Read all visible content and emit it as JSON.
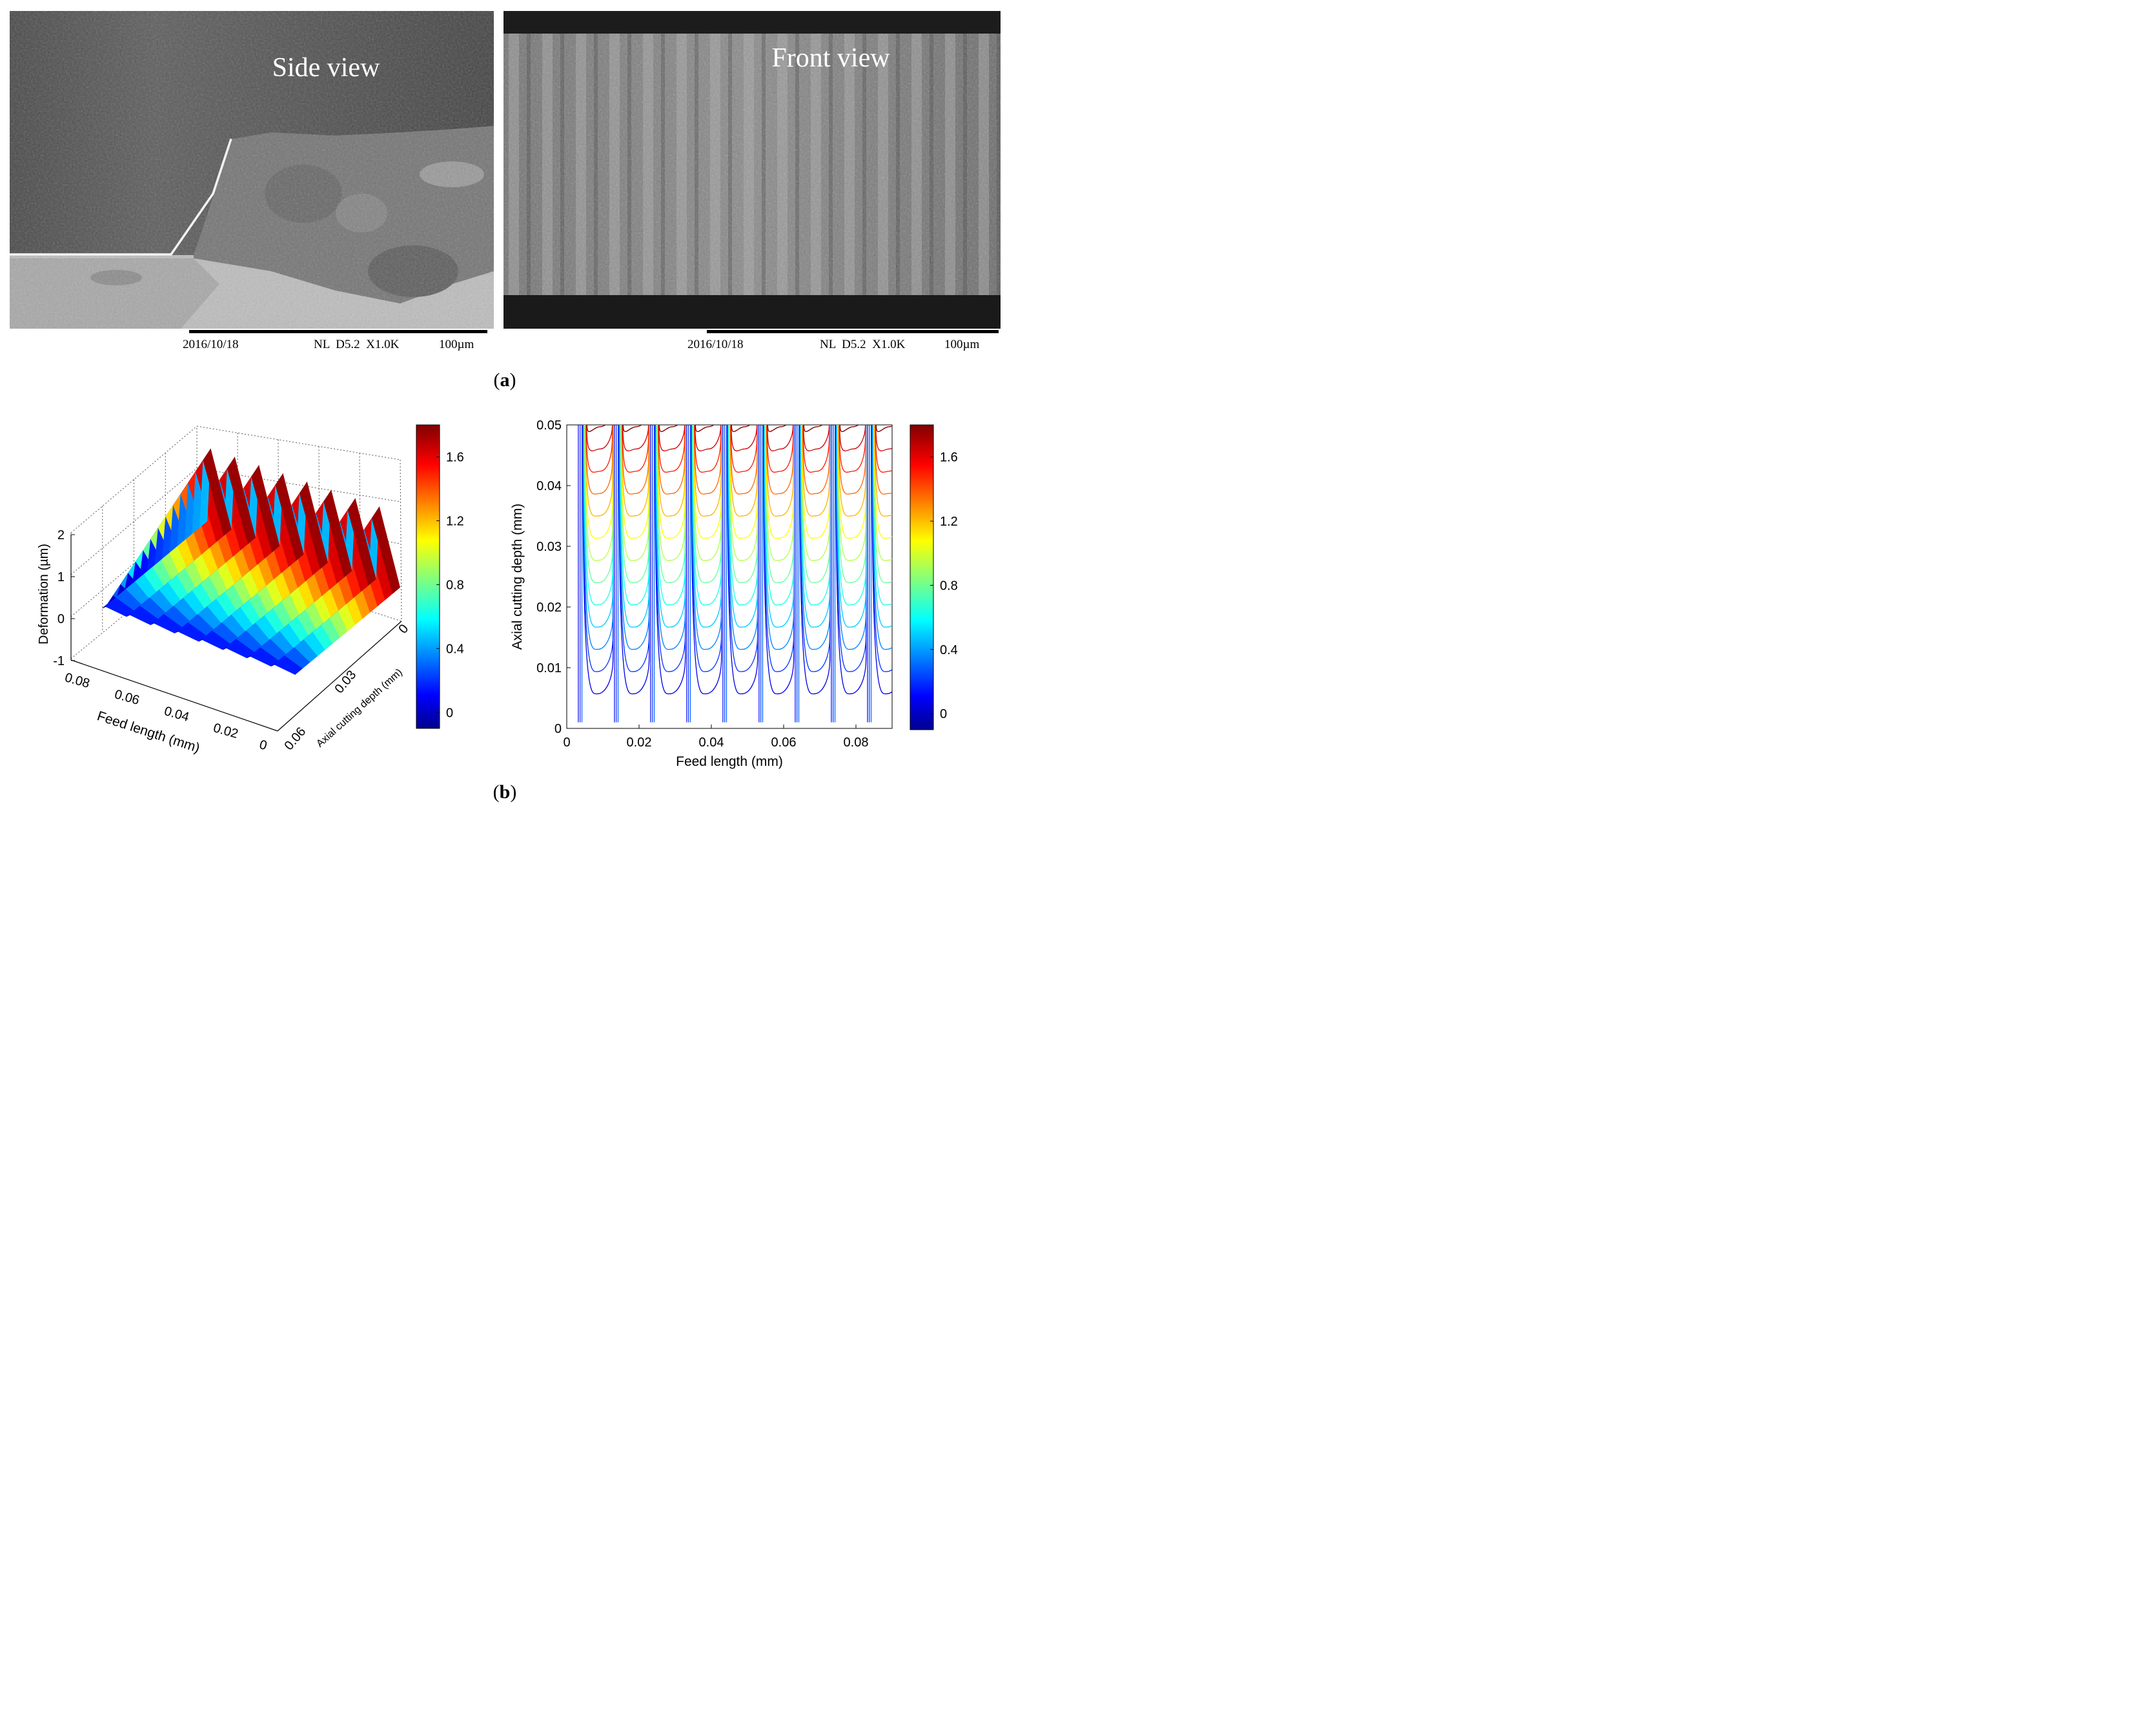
{
  "panel_a": {
    "label_open": "(",
    "label_letter": "a",
    "label_close": ")",
    "side": {
      "title": "Side view",
      "date": "2016/10/18",
      "params": "NL  D5.2  X1.0K",
      "scale": "100µm"
    },
    "front": {
      "title": "Front view",
      "date": "2016/10/18",
      "params": "NL  D5.2  X1.0K",
      "scale": "100µm"
    }
  },
  "panel_b": {
    "label_open": "(",
    "label_letter": "b",
    "label_close": ")"
  },
  "chart_data": [
    {
      "type": "surface",
      "zlabel": "Deformation (µm)",
      "xlabel": "Feed length (mm)",
      "ylabel": "Axial cutting depth (mm)",
      "z_ticks": [
        "2",
        "1",
        "0",
        "-1"
      ],
      "x_ticks": [
        "0.08",
        "0.06",
        "0.04",
        "0.02",
        "0"
      ],
      "y_ticks": [
        "0",
        "0.03",
        "0.06"
      ],
      "colorbar_ticks": [
        "1.6",
        "1.2",
        "0.8",
        "0.4",
        "0"
      ],
      "colorbar_range": [
        -0.1,
        1.8
      ],
      "colormap": "jet",
      "ridges": 8
    },
    {
      "type": "contour",
      "xlabel": "Feed length (mm)",
      "ylabel": "Axial cutting depth (mm)",
      "x_ticks": [
        "0",
        "0.02",
        "0.04",
        "0.06",
        "0.08"
      ],
      "y_ticks": [
        "0.05",
        "0.04",
        "0.03",
        "0.02",
        "0.01",
        "0"
      ],
      "xlim": [
        0,
        0.09
      ],
      "ylim": [
        0,
        0.05
      ],
      "colorbar_ticks": [
        "1.6",
        "1.2",
        "0.8",
        "0.4",
        "0"
      ],
      "colorbar_range": [
        -0.1,
        1.8
      ],
      "colormap": "jet",
      "period": 0.01
    }
  ]
}
